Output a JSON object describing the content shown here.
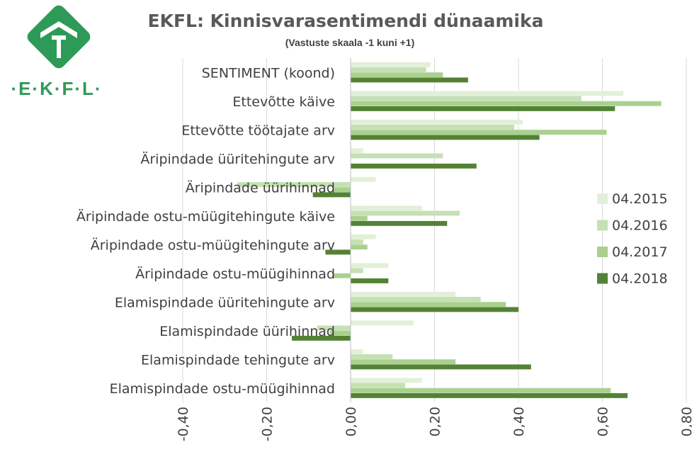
{
  "logo": {
    "text": "·E·K·F·L·",
    "color": "#2e9a57"
  },
  "chart_data": {
    "type": "bar",
    "orientation": "horizontal",
    "title": "EKFL: Kinnisvarasentimendi dünaamika",
    "subtitle": "(Vastuste skaala -1 kuni +1)",
    "categories": [
      "SENTIMENT (koond)",
      "Ettevõtte käive",
      "Ettevõtte töötajate arv",
      "Äripindade üüritehingute arv",
      "Äripindade üürihinnad",
      "Äripindade ostu-müügitehingute käive",
      "Äripindade ostu-müügitehingute arv",
      "Äripindade ostu-müügihinnad",
      "Elamispindade üüritehingute arv",
      "Elamispindade üürihinnad",
      "Elamispindade tehingute arv",
      "Elamispindade ostu-müügihinnad"
    ],
    "series": [
      {
        "name": "04.2015",
        "color": "#e2f0d9",
        "values": [
          0.19,
          0.65,
          0.41,
          0.03,
          0.06,
          0.17,
          0.06,
          0.09,
          0.25,
          0.15,
          0.03,
          0.17
        ]
      },
      {
        "name": "04.2016",
        "color": "#c5e0b4",
        "values": [
          0.18,
          0.55,
          0.39,
          0.22,
          -0.27,
          0.26,
          0.03,
          0.03,
          0.31,
          -0.08,
          0.1,
          0.13
        ]
      },
      {
        "name": "04.2017",
        "color": "#a9d18e",
        "values": [
          0.22,
          0.74,
          0.61,
          0.0,
          -0.04,
          0.04,
          0.04,
          -0.04,
          0.37,
          -0.05,
          0.25,
          0.62
        ]
      },
      {
        "name": "04.2018",
        "color": "#548235",
        "values": [
          0.28,
          0.63,
          0.45,
          0.3,
          -0.09,
          0.23,
          -0.06,
          0.09,
          0.4,
          -0.14,
          0.43,
          0.66
        ]
      }
    ],
    "xlim": [
      -0.4,
      0.8
    ],
    "xticks": [
      "-0,40",
      "-0,20",
      "0,00",
      "0,20",
      "0,40",
      "0,60",
      "0,80"
    ],
    "xtick_values": [
      -0.4,
      -0.2,
      0.0,
      0.2,
      0.4,
      0.6,
      0.8
    ],
    "grid": true,
    "legend_position": "right",
    "xlabel": "",
    "ylabel": ""
  }
}
